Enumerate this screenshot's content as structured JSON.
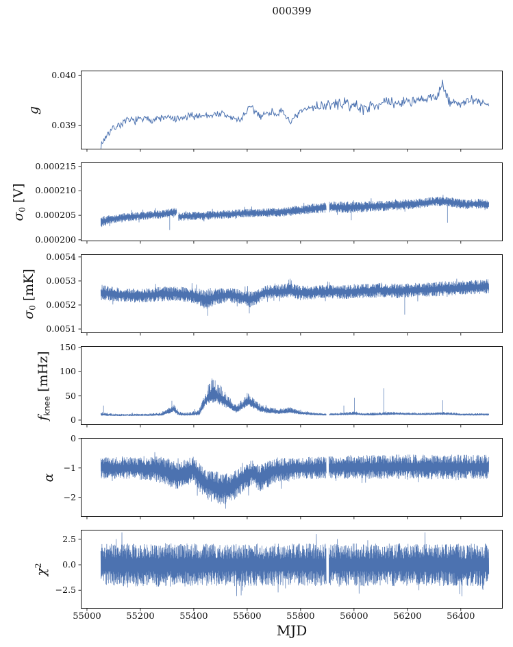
{
  "chart_data": {
    "type": "line",
    "title": "000399",
    "line_color": "#4c72b0",
    "axis_color": "#111111",
    "background_color": "#ffffff",
    "grid": "off",
    "legend": "none",
    "x_axis": {
      "label": "MJD",
      "xlim": [
        54977,
        56557
      ],
      "ticks": [
        {
          "v": 55000,
          "label": "55000"
        },
        {
          "v": 55200,
          "label": "55200"
        },
        {
          "v": 55400,
          "label": "55400"
        },
        {
          "v": 55600,
          "label": "55600"
        },
        {
          "v": 55800,
          "label": "55800"
        },
        {
          "v": 56000,
          "label": "56000"
        },
        {
          "v": 56200,
          "label": "56200"
        },
        {
          "v": 56400,
          "label": "56400"
        }
      ]
    },
    "series_encoding": "each panel stores the noisy series as an envelope sampled along MJD: mean value and half-spread of the scatter, plus isolated spikes [mjd, value] and data gaps [mjd_start, mjd_end]",
    "panels": [
      {
        "id": "g",
        "ylabel_parts": [
          {
            "t": "g",
            "s": "it"
          }
        ],
        "ylim": [
          0.038525,
          0.0401
        ],
        "yticks": [
          {
            "v": 0.04,
            "label": "0.040"
          },
          {
            "v": 0.039,
            "label": "0.039"
          }
        ],
        "style": "line",
        "seed": 7,
        "n_points": 520,
        "x_range": [
          55052,
          56505
        ],
        "envelope": {
          "x": [
            55052,
            55065,
            55080,
            55110,
            55150,
            55200,
            55250,
            55300,
            55340,
            55380,
            55420,
            55460,
            55500,
            55540,
            55570,
            55610,
            55650,
            55690,
            55730,
            55770,
            55800,
            55840,
            55880,
            55920,
            55960,
            56000,
            56040,
            56080,
            56120,
            56160,
            56200,
            56240,
            56280,
            56310,
            56330,
            56350,
            56390,
            56440,
            56505
          ],
          "mean": [
            0.03858,
            0.03874,
            0.03886,
            0.03899,
            0.03909,
            0.03912,
            0.03913,
            0.03916,
            0.03911,
            0.03918,
            0.0392,
            0.03921,
            0.03924,
            0.03916,
            0.0391,
            0.03936,
            0.0392,
            0.03927,
            0.03925,
            0.03907,
            0.03927,
            0.03937,
            0.0394,
            0.03942,
            0.03944,
            0.0394,
            0.03934,
            0.03943,
            0.03946,
            0.03944,
            0.0395,
            0.03948,
            0.03953,
            0.03959,
            0.03985,
            0.0395,
            0.03944,
            0.03949,
            0.03944
          ],
          "spread": [
            7e-05,
            8e-05,
            8e-05,
            8e-05,
            8e-05,
            8e-05,
            8e-05,
            8e-05,
            9e-05,
            8e-05,
            8e-05,
            8e-05,
            8e-05,
            9e-05,
            0.0001,
            9e-05,
            9e-05,
            8e-05,
            9e-05,
            0.0001,
            9e-05,
            0.00011,
            0.00011,
            0.00011,
            0.00011,
            0.00012,
            0.00012,
            0.00011,
            0.00011,
            0.00011,
            0.00011,
            0.00011,
            0.00011,
            0.00012,
            0.00013,
            0.00012,
            0.00011,
            0.00011,
            0.00011
          ]
        },
        "gaps": [],
        "spikes": []
      },
      {
        "id": "sigma0-V",
        "ylabel_parts": [
          {
            "t": "σ",
            "s": "it"
          },
          {
            "t": "0",
            "s": "sub"
          },
          {
            "t": " [V]",
            "s": "n"
          }
        ],
        "ylim": [
          0.0001997,
          0.0002158
        ],
        "yticks": [
          {
            "v": 0.000215,
            "label": "0.000215"
          },
          {
            "v": 0.00021,
            "label": "0.000210"
          },
          {
            "v": 0.000205,
            "label": "0.000205"
          },
          {
            "v": 0.0002,
            "label": "0.000200"
          }
        ],
        "style": "band",
        "seed": 11,
        "n_points": 1900,
        "x_range": [
          55052,
          56505
        ],
        "envelope": {
          "x": [
            55052,
            55090,
            55160,
            55240,
            55300,
            55336,
            55342,
            55420,
            55500,
            55580,
            55660,
            55740,
            55810,
            55860,
            55896,
            55908,
            55960,
            56030,
            56100,
            56170,
            56240,
            56290,
            56330,
            56370,
            56420,
            56470,
            56505
          ],
          "mean": [
            0.0002036,
            0.0002042,
            0.0002047,
            0.000205,
            0.0002054,
            0.0002057,
            0.0002047,
            0.0002049,
            0.0002051,
            0.0002054,
            0.0002055,
            0.0002057,
            0.0002061,
            0.0002064,
            0.0002066,
            0.0002067,
            0.0002066,
            0.0002067,
            0.0002069,
            0.0002071,
            0.0002074,
            0.0002077,
            0.0002079,
            0.0002076,
            0.0002072,
            0.0002074,
            0.0002071
          ],
          "spread": [
            1.1e-06,
            8e-07,
            8e-07,
            8e-07,
            8e-07,
            8e-07,
            8e-07,
            8e-07,
            8e-07,
            8e-07,
            8e-07,
            9e-07,
            9e-07,
            1e-06,
            1e-06,
            1e-06,
            1.1e-06,
            1e-06,
            1e-06,
            1e-06,
            9e-07,
            9e-07,
            9e-07,
            9e-07,
            9e-07,
            9e-07,
            9e-07
          ]
        },
        "gaps": [
          [
            55336,
            55342
          ],
          [
            55896,
            55908
          ]
        ],
        "spikes": [
          [
            55310,
            0.000202
          ],
          [
            55990,
            0.000204
          ],
          [
            56350,
            0.0002035
          ]
        ]
      },
      {
        "id": "sigma0-mK",
        "ylabel_parts": [
          {
            "t": "σ",
            "s": "it"
          },
          {
            "t": "0",
            "s": "sub"
          },
          {
            "t": " [mK]",
            "s": "n"
          }
        ],
        "ylim": [
          0.005083,
          0.005411
        ],
        "yticks": [
          {
            "v": 0.0054,
            "label": "0.0054"
          },
          {
            "v": 0.0053,
            "label": "0.0053"
          },
          {
            "v": 0.0052,
            "label": "0.0052"
          },
          {
            "v": 0.0051,
            "label": "0.0051"
          }
        ],
        "style": "band",
        "seed": 23,
        "n_points": 1900,
        "x_range": [
          55052,
          56505
        ],
        "envelope": {
          "x": [
            55052,
            55120,
            55200,
            55270,
            55330,
            55400,
            55445,
            55470,
            55520,
            55570,
            55600,
            55625,
            55665,
            55720,
            55760,
            55800,
            55860,
            55920,
            55980,
            56040,
            56100,
            56160,
            56220,
            56280,
            56340,
            56400,
            56460,
            56505
          ],
          "mean": [
            0.005252,
            0.005242,
            0.005238,
            0.005245,
            0.005247,
            0.00524,
            0.005222,
            0.00523,
            0.005242,
            0.005235,
            0.005222,
            0.005228,
            0.005253,
            0.005256,
            0.005262,
            0.00525,
            0.005252,
            0.005255,
            0.005254,
            0.005258,
            0.005262,
            0.005258,
            0.005262,
            0.005264,
            0.005268,
            0.005272,
            0.005274,
            0.005278
          ],
          "spread": [
            3e-05,
            2.7e-05,
            2.6e-05,
            2.8e-05,
            2.7e-05,
            3e-05,
            3.6e-05,
            3.2e-05,
            2.8e-05,
            2.8e-05,
            3.4e-05,
            3e-05,
            2.7e-05,
            2.6e-05,
            2.8e-05,
            2.8e-05,
            2.7e-05,
            2.7e-05,
            2.7e-05,
            2.7e-05,
            2.8e-05,
            2.8e-05,
            2.7e-05,
            2.7e-05,
            2.8e-05,
            2.7e-05,
            2.7e-05,
            2.8e-05
          ]
        },
        "gaps": [],
        "spikes": [
          [
            55452,
            0.005155
          ],
          [
            55608,
            0.005165
          ],
          [
            55756,
            0.005305
          ],
          [
            56190,
            0.00516
          ]
        ]
      },
      {
        "id": "fknee",
        "ylabel_parts": [
          {
            "t": "f",
            "s": "it"
          },
          {
            "t": "knee",
            "s": "sub",
            "f": "sans"
          },
          {
            "t": " [mHz]",
            "s": "n"
          }
        ],
        "ylim": [
          -10,
          153
        ],
        "yticks": [
          {
            "v": 150,
            "label": "150"
          },
          {
            "v": 100,
            "label": "100"
          },
          {
            "v": 50,
            "label": "50"
          },
          {
            "v": 0,
            "label": "0"
          }
        ],
        "style": "band-pos",
        "seed": 5,
        "n_points": 1900,
        "x_range": [
          55052,
          56505
        ],
        "floor": 3,
        "envelope": {
          "x": [
            55052,
            55100,
            55200,
            55280,
            55310,
            55325,
            55345,
            55380,
            55420,
            55440,
            55460,
            55475,
            55495,
            55515,
            55535,
            55560,
            55585,
            55605,
            55625,
            55650,
            55680,
            55720,
            55760,
            55800,
            55850,
            55895,
            55910,
            55960,
            56000,
            56040,
            56100,
            56160,
            56220,
            56280,
            56340,
            56400,
            56460,
            56505
          ],
          "mean": [
            11,
            10,
            10,
            11,
            18,
            22,
            12,
            11,
            14,
            35,
            50,
            52,
            45,
            38,
            30,
            20,
            30,
            38,
            30,
            22,
            18,
            16,
            18,
            14,
            12,
            11,
            11,
            12,
            13,
            11,
            12,
            13,
            12,
            12,
            13,
            11,
            11,
            11
          ],
          "spread": [
            4,
            3,
            3,
            4,
            8,
            12,
            5,
            4,
            8,
            18,
            28,
            32,
            28,
            22,
            15,
            10,
            14,
            16,
            14,
            10,
            8,
            7,
            8,
            5,
            4,
            3,
            3,
            4,
            5,
            3,
            4,
            4,
            3,
            3,
            4,
            3,
            3,
            3
          ]
        },
        "gaps": [
          [
            55896,
            55908
          ]
        ],
        "spikes": [
          [
            55062,
            30
          ],
          [
            55318,
            40
          ],
          [
            55468,
            86
          ],
          [
            55480,
            82
          ],
          [
            55600,
            56
          ],
          [
            55962,
            30
          ],
          [
            56002,
            46
          ],
          [
            56112,
            66
          ],
          [
            56332,
            41
          ]
        ]
      },
      {
        "id": "alpha",
        "ylabel_parts": [
          {
            "t": "α",
            "s": "it"
          }
        ],
        "ylim": [
          -2.66,
          0.02
        ],
        "yticks": [
          {
            "v": 0,
            "label": "0"
          },
          {
            "v": -1,
            "label": "−1"
          },
          {
            "v": -2,
            "label": "−2"
          }
        ],
        "style": "band",
        "seed": 31,
        "n_points": 2000,
        "x_range": [
          55052,
          56505
        ],
        "envelope": {
          "x": [
            55052,
            55150,
            55250,
            55310,
            55340,
            55370,
            55400,
            55420,
            55440,
            55470,
            55500,
            55530,
            55560,
            55590,
            55620,
            55645,
            55670,
            55700,
            55750,
            55800,
            55850,
            55895,
            55910,
            56000,
            56100,
            56200,
            56300,
            56400,
            56505
          ],
          "mean": [
            -1.0,
            -1.0,
            -1.02,
            -1.15,
            -1.3,
            -1.15,
            -1.05,
            -1.3,
            -1.5,
            -1.62,
            -1.7,
            -1.68,
            -1.55,
            -1.3,
            -1.15,
            -1.35,
            -1.25,
            -1.1,
            -1.05,
            -1.0,
            -1.0,
            -1.0,
            -0.98,
            -0.97,
            -0.97,
            -0.96,
            -0.97,
            -0.96,
            -0.97
          ],
          "spread": [
            0.33,
            0.34,
            0.38,
            0.45,
            0.42,
            0.42,
            0.4,
            0.45,
            0.45,
            0.5,
            0.5,
            0.48,
            0.45,
            0.42,
            0.4,
            0.42,
            0.4,
            0.38,
            0.36,
            0.33,
            0.35,
            0.35,
            0.35,
            0.37,
            0.38,
            0.38,
            0.38,
            0.38,
            0.38
          ]
        },
        "gaps": [
          [
            55896,
            55906
          ]
        ],
        "spikes": []
      },
      {
        "id": "chi2",
        "ylabel_parts": [
          {
            "t": "χ",
            "s": "it"
          },
          {
            "t": "2",
            "s": "sup"
          }
        ],
        "ylim": [
          -4.3,
          3.43
        ],
        "yticks": [
          {
            "v": 2.5,
            "label": "2.5"
          },
          {
            "v": 0.0,
            "label": "0.0"
          },
          {
            "v": -2.5,
            "label": "−2.5"
          }
        ],
        "style": "band",
        "seed": 41,
        "n_points": 2100,
        "x_range": [
          55052,
          56505
        ],
        "envelope": {
          "x": [
            55052,
            55300,
            55600,
            55895,
            55910,
            56200,
            56505
          ],
          "mean": [
            0,
            0,
            0,
            0,
            0,
            0,
            0
          ],
          "spread": [
            1.9,
            1.95,
            1.9,
            1.9,
            1.95,
            1.9,
            1.9
          ]
        },
        "gaps": [
          [
            55896,
            55906
          ]
        ],
        "spikes": []
      }
    ]
  }
}
